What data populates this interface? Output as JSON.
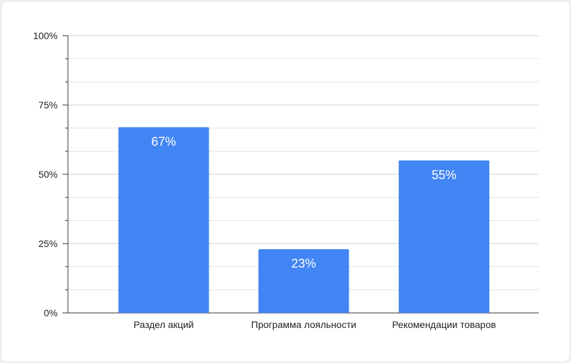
{
  "chart_data": {
    "type": "bar",
    "categories": [
      "Раздел акций",
      "Программа лояльности",
      "Рекомендации товаров"
    ],
    "values": [
      67,
      23,
      55
    ],
    "data_labels": [
      "67%",
      "23%",
      "55%"
    ],
    "ylim": [
      0,
      100
    ],
    "yticks": [
      0,
      25,
      50,
      75,
      100
    ],
    "ytick_labels": [
      "0%",
      "25%",
      "50%",
      "75%",
      "100%"
    ],
    "grid": true,
    "legend": "none",
    "bar_color": "#4285f4",
    "title": "",
    "xlabel": "",
    "ylabel": ""
  }
}
